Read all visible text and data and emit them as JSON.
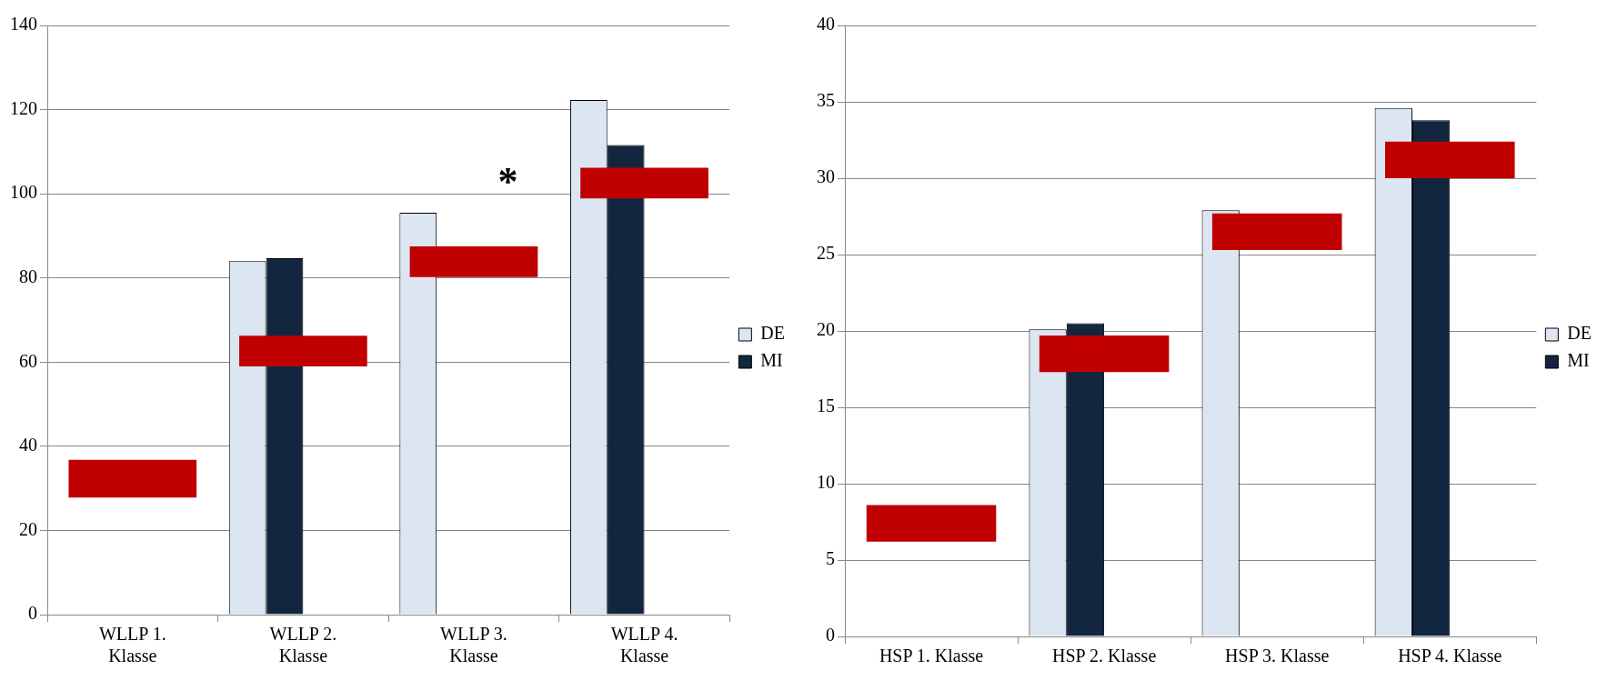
{
  "chart_data": [
    {
      "type": "bar",
      "categories": [
        "WLLP 1. Klasse",
        "WLLP 2. Klasse",
        "WLLP 3. Klasse",
        "WLLP 4. Klasse"
      ],
      "series": [
        {
          "name": "DE",
          "color": "#dce6f2",
          "values": [
            null,
            84,
            95.5,
            122.3
          ]
        },
        {
          "name": "MI",
          "color": "#12263f",
          "values": [
            null,
            84.7,
            null,
            111.6
          ]
        },
        {
          "color": "#c00000",
          "base": [
            27.8,
            59,
            80.2,
            98.9
          ],
          "values": [
            9,
            7.3,
            7.3,
            7.3
          ]
        }
      ],
      "ylim": [
        0,
        140
      ],
      "yticks": [
        0,
        20,
        40,
        60,
        80,
        100,
        120,
        140
      ],
      "grid": "y",
      "legend": "right",
      "annotations": [
        "*"
      ]
    },
    {
      "type": "bar",
      "categories": [
        "HSP 1. Klasse",
        "HSP 2. Klasse",
        "HSP 3. Klasse",
        "HSP 4. Klasse"
      ],
      "series": [
        {
          "name": "DE",
          "color": "#dce6f2",
          "values": [
            null,
            20.1,
            27.9,
            34.6
          ]
        },
        {
          "name": "MI",
          "color": "#12263f",
          "values": [
            null,
            20.5,
            null,
            33.8
          ]
        },
        {
          "color": "#c00000",
          "base": [
            6.2,
            17.3,
            25.3,
            30
          ],
          "values": [
            2.4,
            2.4,
            2.4,
            2.4
          ]
        }
      ],
      "ylim": [
        0,
        40
      ],
      "yticks": [
        0,
        5,
        10,
        15,
        20,
        25,
        30,
        35,
        40
      ],
      "grid": "y",
      "legend": "right"
    }
  ]
}
